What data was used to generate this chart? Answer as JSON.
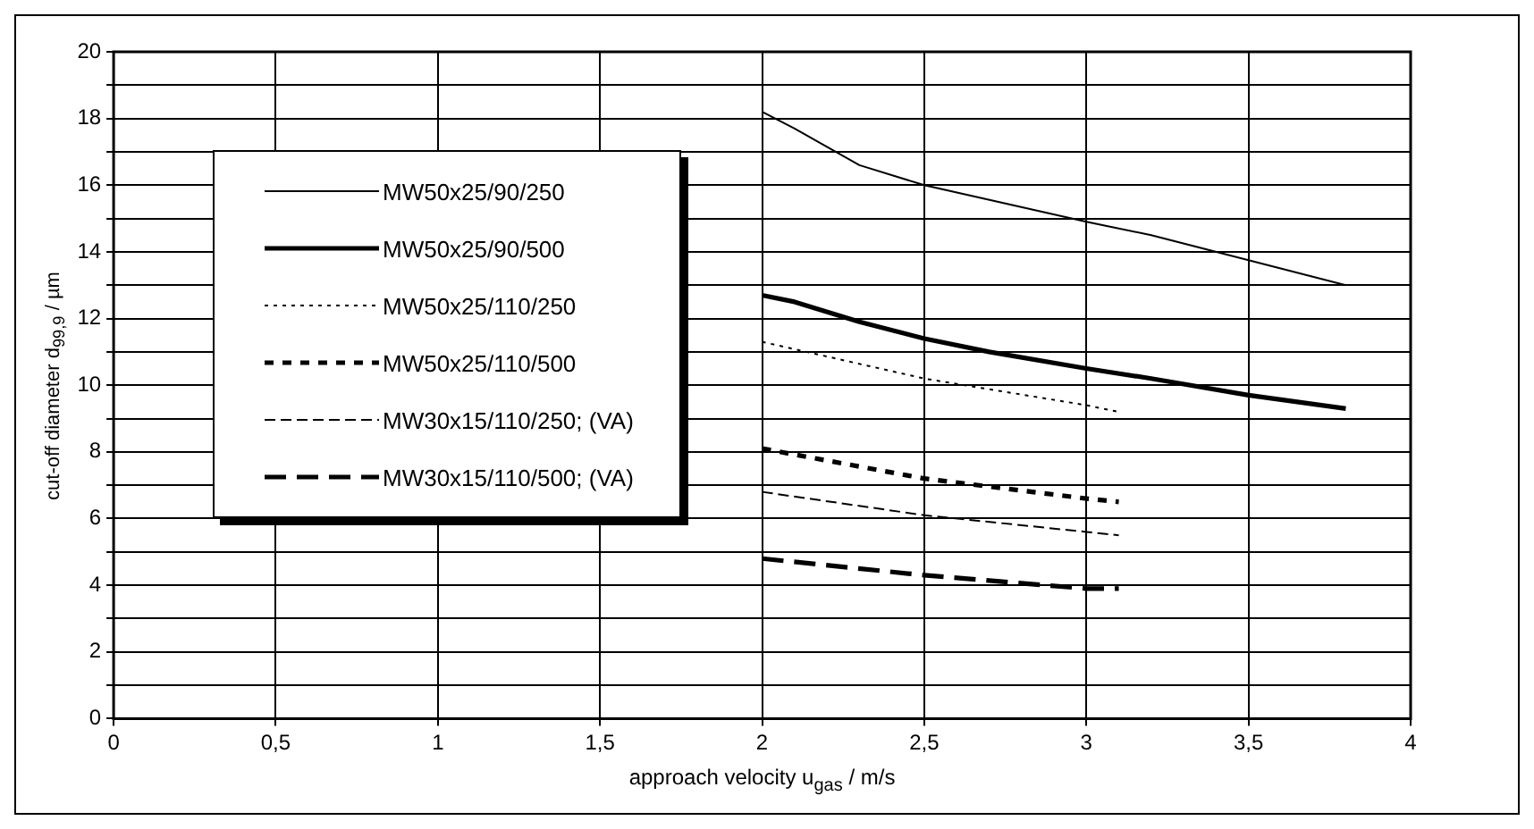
{
  "chart_data": {
    "type": "line",
    "xlabel": "approach velocity u$_{gas}$ / m/s",
    "ylabel": "cut-off diameter d$_{99,9}$ / µm",
    "xlim": [
      0,
      4
    ],
    "xticks": [
      {
        "value": 0,
        "label": "0"
      },
      {
        "value": 0.5,
        "label": "0,5"
      },
      {
        "value": 1,
        "label": "1"
      },
      {
        "value": 1.5,
        "label": "1,5"
      },
      {
        "value": 2,
        "label": "2"
      },
      {
        "value": 2.5,
        "label": "2,5"
      },
      {
        "value": 3,
        "label": "3"
      },
      {
        "value": 3.5,
        "label": "3,5"
      },
      {
        "value": 4,
        "label": "4"
      }
    ],
    "ylim": [
      0,
      20
    ],
    "yticks": [
      0,
      {
        "value": 1,
        "label": null
      },
      2,
      {
        "value": 3,
        "label": null
      },
      4,
      {
        "value": 5,
        "label": null
      },
      6,
      {
        "value": 7,
        "label": null
      },
      8,
      {
        "value": 9,
        "label": null
      },
      10,
      {
        "value": 11,
        "label": null
      },
      12,
      {
        "value": 13,
        "label": null
      },
      14,
      {
        "value": 15,
        "label": null
      },
      16,
      {
        "value": 17,
        "label": null
      },
      18,
      {
        "value": 19,
        "label": null
      },
      20
    ],
    "grid": true,
    "legend": "top left",
    "marker": "none",
    "series": [
      {
        "name": "MW50x25/90/250",
        "color": "#000000",
        "line_style": "solid",
        "x": [
          2,
          2.1,
          2.3,
          2.5,
          3,
          3.2,
          3.8
        ],
        "values": [
          18.2,
          17.7,
          16.6,
          16.0,
          14.9,
          14.5,
          13.0
        ]
      },
      {
        "name": "MW50x25/90/500",
        "color": "#000000",
        "line_style": "solid",
        "x": [
          2,
          2.1,
          2.3,
          2.5,
          2.7,
          3,
          3.2,
          3.5,
          3.8
        ],
        "values": [
          12.7,
          12.5,
          11.9,
          11.4,
          11.0,
          10.5,
          10.2,
          9.7,
          9.3
        ]
      },
      {
        "name": "MW50x25/110/250",
        "color": "#000000",
        "line_style": "dotted",
        "x": [
          2,
          2.5,
          3,
          3.1
        ],
        "values": [
          11.3,
          10.2,
          9.4,
          9.2
        ]
      },
      {
        "name": "MW50x25/110/500",
        "color": "#000000",
        "line_style": "dashed",
        "x": [
          2,
          2.5,
          3,
          3.1
        ],
        "values": [
          8.1,
          7.2,
          6.6,
          6.5
        ]
      },
      {
        "name": "MW30x15/110/250; (VA)",
        "color": "#000000",
        "line_style": "dashed",
        "x": [
          2,
          2.5,
          3,
          3.1
        ],
        "values": [
          6.8,
          6.1,
          5.6,
          5.5
        ]
      },
      {
        "name": "MW30x15/110/500; (VA)",
        "color": "#000000",
        "line_style": "dashed",
        "x": [
          2,
          2.5,
          3,
          3.1
        ],
        "values": [
          4.8,
          4.3,
          3.9,
          3.9
        ]
      }
    ]
  }
}
